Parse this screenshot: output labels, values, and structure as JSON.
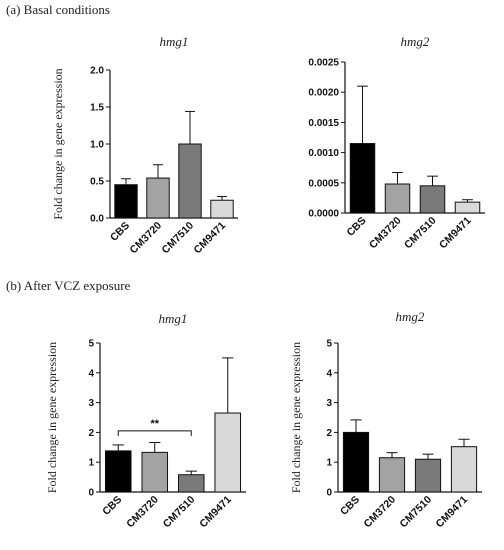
{
  "sections": [
    {
      "label": "(a) Basal conditions"
    },
    {
      "label": "(b) After VCZ exposure"
    }
  ],
  "colors": {
    "CBS": "#000000",
    "CM3720": "#a3a3a3",
    "CM7510": "#7a7a7a",
    "CM9471": "#d9d9d9"
  },
  "chart_data": [
    {
      "type": "bar",
      "title": "hmg1",
      "ylabel": "Fold change in gene expression",
      "xlabel": "",
      "categories": [
        "CBS",
        "CM3720",
        "CM7510",
        "CM9471"
      ],
      "values": [
        0.45,
        0.54,
        1.0,
        0.24
      ],
      "errors": [
        0.08,
        0.18,
        0.44,
        0.05
      ],
      "ylim": [
        0,
        2.0
      ],
      "yticks": [
        0,
        0.5,
        1.0,
        1.5,
        2.0
      ],
      "ytick_labels": [
        "0.0",
        "0.5",
        "1.0",
        "1.5",
        "2.0"
      ],
      "grid": false,
      "annotations": []
    },
    {
      "type": "bar",
      "title": "hmg2",
      "ylabel": "",
      "xlabel": "",
      "categories": [
        "CBS",
        "CM3720",
        "CM7510",
        "CM9471"
      ],
      "values": [
        0.00115,
        0.00048,
        0.00045,
        0.00018
      ],
      "errors": [
        0.00095,
        0.00019,
        0.00016,
        4e-05
      ],
      "ylim": [
        0,
        0.0025
      ],
      "yticks": [
        0,
        0.0005,
        0.001,
        0.0015,
        0.002,
        0.0025
      ],
      "ytick_labels": [
        "0.0000",
        "0.0005",
        "0.0010",
        "0.0015",
        "0.0020",
        "0.0025"
      ],
      "grid": false,
      "annotations": []
    },
    {
      "type": "bar",
      "title": "hmg1",
      "ylabel": "Fold change in gene expression",
      "xlabel": "",
      "categories": [
        "CBS",
        "CM3720",
        "CM7510",
        "CM9471"
      ],
      "values": [
        1.38,
        1.33,
        0.58,
        2.65
      ],
      "errors": [
        0.2,
        0.33,
        0.12,
        1.85
      ],
      "ylim": [
        0,
        5
      ],
      "yticks": [
        0,
        1,
        2,
        3,
        4,
        5
      ],
      "ytick_labels": [
        "0",
        "1",
        "2",
        "3",
        "4",
        "5"
      ],
      "grid": false,
      "annotations": [
        {
          "text": "**",
          "from": "CBS",
          "to": "CM7510",
          "y": 2.05
        }
      ]
    },
    {
      "type": "bar",
      "title": "hmg2",
      "ylabel": "Fold change in gene expression",
      "xlabel": "",
      "categories": [
        "CBS",
        "CM3720",
        "CM7510",
        "CM9471"
      ],
      "values": [
        2.0,
        1.15,
        1.1,
        1.52
      ],
      "errors": [
        0.42,
        0.17,
        0.17,
        0.25
      ],
      "ylim": [
        0,
        5
      ],
      "yticks": [
        0,
        1,
        2,
        3,
        4,
        5
      ],
      "ytick_labels": [
        "0",
        "1",
        "2",
        "3",
        "4",
        "5"
      ],
      "grid": false,
      "annotations": []
    }
  ]
}
